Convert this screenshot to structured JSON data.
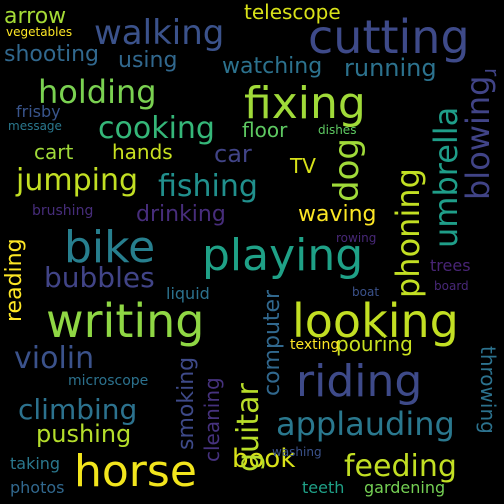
{
  "words": {
    "cutting": "cutting",
    "fixing": "fixing",
    "bike": "bike",
    "playing": "playing",
    "writing": "writing",
    "looking": "looking",
    "riding": "riding",
    "horse": "horse",
    "walking": "walking",
    "holding": "holding",
    "cooking": "cooking",
    "jumping": "jumping",
    "fishing": "fishing",
    "dog": "dog",
    "umbrella": "umbrella",
    "blowing": "blowing",
    "phoning": "phoning",
    "drinking": "drinking",
    "bubbles": "bubbles",
    "violin": "violin",
    "climbing": "climbing",
    "applauding": "applauding",
    "guitar": "guitar",
    "feeding": "feeding",
    "pushing": "pushing",
    "book": "book",
    "running": "running",
    "watching": "watching",
    "using": "using",
    "shooting": "shooting",
    "arrow": "arrow",
    "telescope": "telescope",
    "vegetables": "vegetables",
    "reading": "reading",
    "brushing": "brushing",
    "frisby": "frisby",
    "message": "message",
    "cart": "cart",
    "hands": "hands",
    "car": "car",
    "floor": "floor",
    "dishes": "dishes",
    "tv": "TV",
    "waving": "waving",
    "rowing": "rowing",
    "trees": "trees",
    "board": "board",
    "boat": "boat",
    "liquid": "liquid",
    "computer": "computer",
    "texting": "texting",
    "pouring": "pouring",
    "smoking": "smoking",
    "cleaning": "cleaning",
    "microscope": "microscope",
    "throwing": "throwing",
    "taking": "taking",
    "photos": "photos",
    "washing": "washing",
    "teeth": "teeth",
    "gardening": "gardening"
  },
  "palette": {
    "background": "#000000",
    "yellow": "#d8e219",
    "lime": "#a0da39",
    "green": "#4ac16d",
    "teal": "#1fa187",
    "cyan": "#277f8e",
    "blue": "#365c8d",
    "indigo": "#46327e",
    "purple": "#440154"
  }
}
